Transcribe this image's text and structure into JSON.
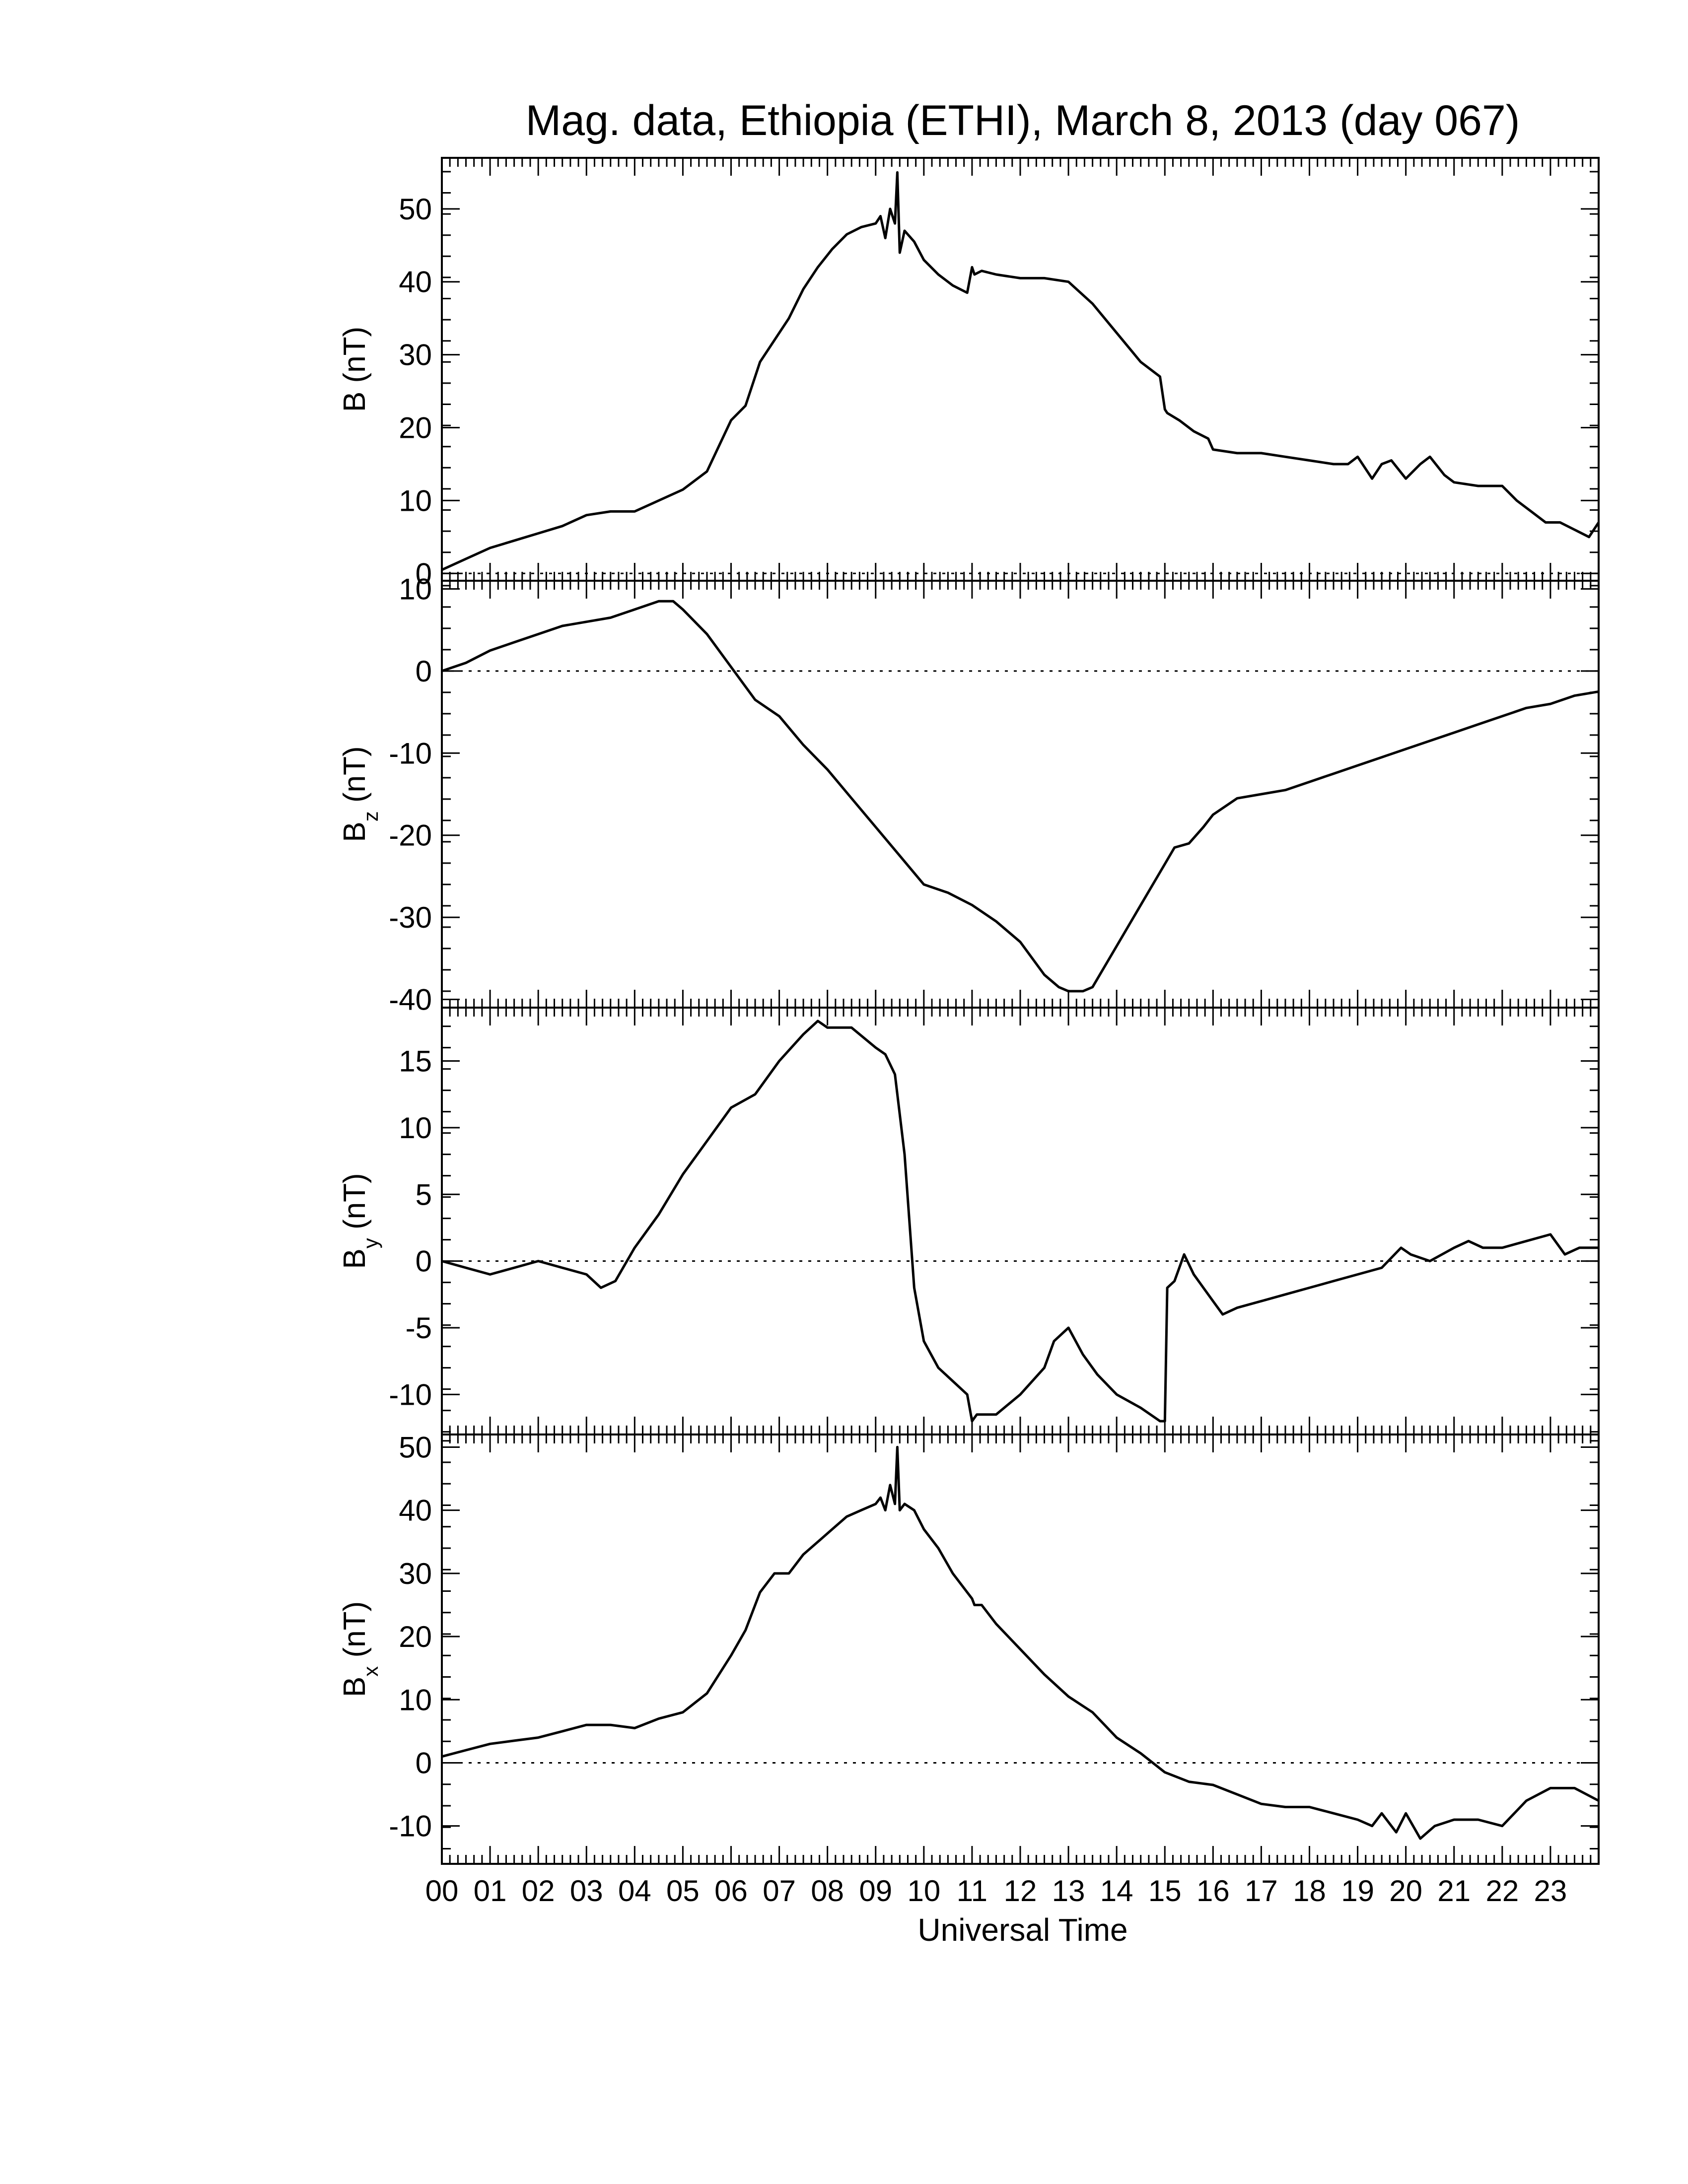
{
  "chart_data": {
    "type": "line",
    "title": "Mag. data, Ethiopia (ETHI), March 8, 2013 (day 067)",
    "xlabel": "Universal Time",
    "x_ticks": [
      "00",
      "01",
      "02",
      "03",
      "04",
      "05",
      "06",
      "07",
      "08",
      "09",
      "10",
      "11",
      "12",
      "13",
      "14",
      "15",
      "16",
      "17",
      "18",
      "19",
      "20",
      "21",
      "22",
      "23"
    ],
    "xlim": [
      0,
      24
    ],
    "panels": [
      {
        "id": "B",
        "ylabel_main": "B",
        "ylabel_sub": "",
        "ylabel_unit": "(nT)",
        "ylim": [
          -1,
          57
        ],
        "y_ticks": [
          0,
          10,
          20,
          30,
          40,
          50
        ],
        "zero_line": true,
        "series": [
          {
            "x": [
              0,
              0.5,
              1,
              1.5,
              2,
              2.5,
              3,
              3.5,
              4,
              4.5,
              5,
              5.5,
              6,
              6.3,
              6.6,
              6.9,
              7.2,
              7.5,
              7.8,
              8.1,
              8.4,
              8.7,
              9.0,
              9.1,
              9.2,
              9.3,
              9.4,
              9.45,
              9.5,
              9.6,
              9.8,
              10,
              10.3,
              10.6,
              10.9,
              11,
              11.05,
              11.2,
              11.5,
              12,
              12.5,
              13,
              13.5,
              14,
              14.5,
              14.9,
              15.0,
              15.05,
              15.3,
              15.6,
              15.9,
              16,
              16.5,
              17,
              17.5,
              18,
              18.5,
              18.8,
              19,
              19.3,
              19.5,
              19.7,
              20,
              20.3,
              20.5,
              20.8,
              21,
              21.5,
              22,
              22.3,
              22.6,
              22.9,
              23.2,
              23.5,
              23.8,
              24
            ],
            "y": [
              0.5,
              2,
              3.5,
              4.5,
              5.5,
              6.5,
              8,
              8.5,
              8.5,
              10,
              11.5,
              14,
              21,
              23,
              29,
              32,
              35,
              39,
              42,
              44.5,
              46.5,
              47.5,
              48,
              49,
              46,
              50,
              48,
              55,
              44,
              47,
              45.5,
              43,
              41,
              39.5,
              38.5,
              42,
              41,
              41.5,
              41,
              40.5,
              40.5,
              40,
              37,
              33,
              29,
              27,
              22.5,
              22,
              21,
              19.5,
              18.5,
              17,
              16.5,
              16.5,
              16,
              15.5,
              15,
              15,
              16,
              13,
              15,
              15.5,
              13,
              15,
              16,
              13.5,
              12.5,
              12,
              12,
              10,
              8.5,
              7,
              7,
              6,
              5,
              7
            ]
          }
        ]
      },
      {
        "id": "Bz",
        "ylabel_main": "B",
        "ylabel_sub": "z",
        "ylabel_unit": "(nT)",
        "ylim": [
          -41,
          11
        ],
        "y_ticks": [
          10,
          0,
          -10,
          -20,
          -30,
          -40
        ],
        "zero_line": true,
        "series": [
          {
            "x": [
              0,
              0.5,
              1,
              1.5,
              2,
              2.5,
              3,
              3.5,
              4,
              4.5,
              4.8,
              5,
              5.5,
              6,
              6.5,
              7,
              7.5,
              8,
              8.5,
              9,
              9.5,
              10,
              10.5,
              11,
              11.5,
              12,
              12.5,
              12.8,
              13,
              13.3,
              13.5,
              14,
              14.5,
              15,
              15.2,
              15.5,
              15.8,
              16,
              16.5,
              17,
              17.5,
              18,
              18.5,
              19,
              19.5,
              20,
              20.5,
              21,
              21.5,
              22,
              22.5,
              23,
              23.5,
              24
            ],
            "y": [
              0,
              1,
              2.5,
              3.5,
              4.5,
              5.5,
              6,
              6.5,
              7.5,
              8.5,
              8.5,
              7.5,
              4.5,
              0.5,
              -3.5,
              -5.5,
              -9,
              -12,
              -15.5,
              -19,
              -22.5,
              -26,
              -27,
              -28.5,
              -30.5,
              -33,
              -37,
              -38.5,
              -39,
              -39,
              -38.5,
              -33.5,
              -28.5,
              -23.5,
              -21.5,
              -21,
              -19,
              -17.5,
              -15.5,
              -15,
              -14.5,
              -13.5,
              -12.5,
              -11.5,
              -10.5,
              -9.5,
              -8.5,
              -7.5,
              -6.5,
              -5.5,
              -4.5,
              -4,
              -3,
              -2.5
            ]
          }
        ]
      },
      {
        "id": "By",
        "ylabel_main": "B",
        "ylabel_sub": "y",
        "ylabel_unit": "(nT)",
        "ylim": [
          -13,
          19
        ],
        "y_ticks": [
          15,
          10,
          5,
          0,
          -5,
          -10
        ],
        "zero_line": true,
        "series": [
          {
            "x": [
              0,
              0.5,
              1,
              1.5,
              2,
              2.5,
              3,
              3.3,
              3.6,
              4,
              4.5,
              5,
              5.5,
              6,
              6.5,
              7,
              7.5,
              7.8,
              8,
              8.5,
              9,
              9.2,
              9.4,
              9.6,
              9.8,
              10,
              10.3,
              10.6,
              10.9,
              11,
              11.1,
              11.5,
              12,
              12.5,
              12.7,
              13,
              13.3,
              13.6,
              14,
              14.5,
              14.9,
              15,
              15.05,
              15.2,
              15.4,
              15.6,
              15.8,
              16,
              16.2,
              16.5,
              17,
              17.5,
              18,
              18.5,
              19,
              19.5,
              19.9,
              20.1,
              20.5,
              21,
              21.3,
              21.6,
              22,
              22.5,
              23,
              23.3,
              23.6,
              24
            ],
            "y": [
              0,
              -0.5,
              -1,
              -0.5,
              0,
              -0.5,
              -1,
              -2,
              -1.5,
              1,
              3.5,
              6.5,
              9,
              11.5,
              12.5,
              15,
              17,
              18,
              17.5,
              17.5,
              16,
              15.5,
              14,
              8,
              -2,
              -6,
              -8,
              -9,
              -10,
              -12,
              -11.5,
              -11.5,
              -10,
              -8,
              -6,
              -5,
              -7,
              -8.5,
              -10,
              -11,
              -12,
              -12,
              -2,
              -1.5,
              0.5,
              -1,
              -2,
              -3,
              -4,
              -3.5,
              -3,
              -2.5,
              -2,
              -1.5,
              -1,
              -0.5,
              1,
              0.5,
              0,
              1,
              1.5,
              1,
              1,
              1.5,
              2,
              0.5,
              1,
              1
            ]
          }
        ]
      },
      {
        "id": "Bx",
        "ylabel_main": "B",
        "ylabel_sub": "x",
        "ylabel_unit": "(nT)",
        "ylim": [
          -16,
          52
        ],
        "y_ticks": [
          50,
          40,
          30,
          20,
          10,
          0,
          -10
        ],
        "zero_line": true,
        "series": [
          {
            "x": [
              0,
              0.5,
              1,
              1.5,
              2,
              2.5,
              3,
              3.5,
              4,
              4.5,
              5,
              5.5,
              6,
              6.3,
              6.6,
              6.9,
              7.2,
              7.5,
              7.8,
              8.1,
              8.4,
              8.7,
              9.0,
              9.1,
              9.2,
              9.3,
              9.4,
              9.45,
              9.5,
              9.6,
              9.8,
              10,
              10.3,
              10.6,
              10.9,
              11,
              11.05,
              11.2,
              11.5,
              12,
              12.5,
              13,
              13.5,
              14,
              14.5,
              15,
              15.5,
              16,
              16.5,
              17,
              17.5,
              18,
              18.5,
              19,
              19.3,
              19.5,
              19.8,
              20,
              20.3,
              20.6,
              21,
              21.5,
              22,
              22.5,
              23,
              23.5,
              24
            ],
            "y": [
              1,
              2,
              3,
              3.5,
              4,
              5,
              6,
              6,
              5.5,
              7,
              8,
              11,
              17,
              21,
              27,
              30,
              30,
              33,
              35,
              37,
              39,
              40,
              41,
              42,
              40,
              44,
              41,
              50,
              40,
              41,
              40,
              37,
              34,
              30,
              27,
              26,
              25,
              25,
              22,
              18,
              14,
              10.5,
              8,
              4,
              1.5,
              -1.5,
              -3,
              -3.5,
              -5,
              -6.5,
              -7,
              -7,
              -8,
              -9,
              -10,
              -8,
              -11,
              -8,
              -12,
              -10,
              -9,
              -9,
              -10,
              -6,
              -4,
              -4,
              -6
            ]
          }
        ]
      }
    ]
  }
}
